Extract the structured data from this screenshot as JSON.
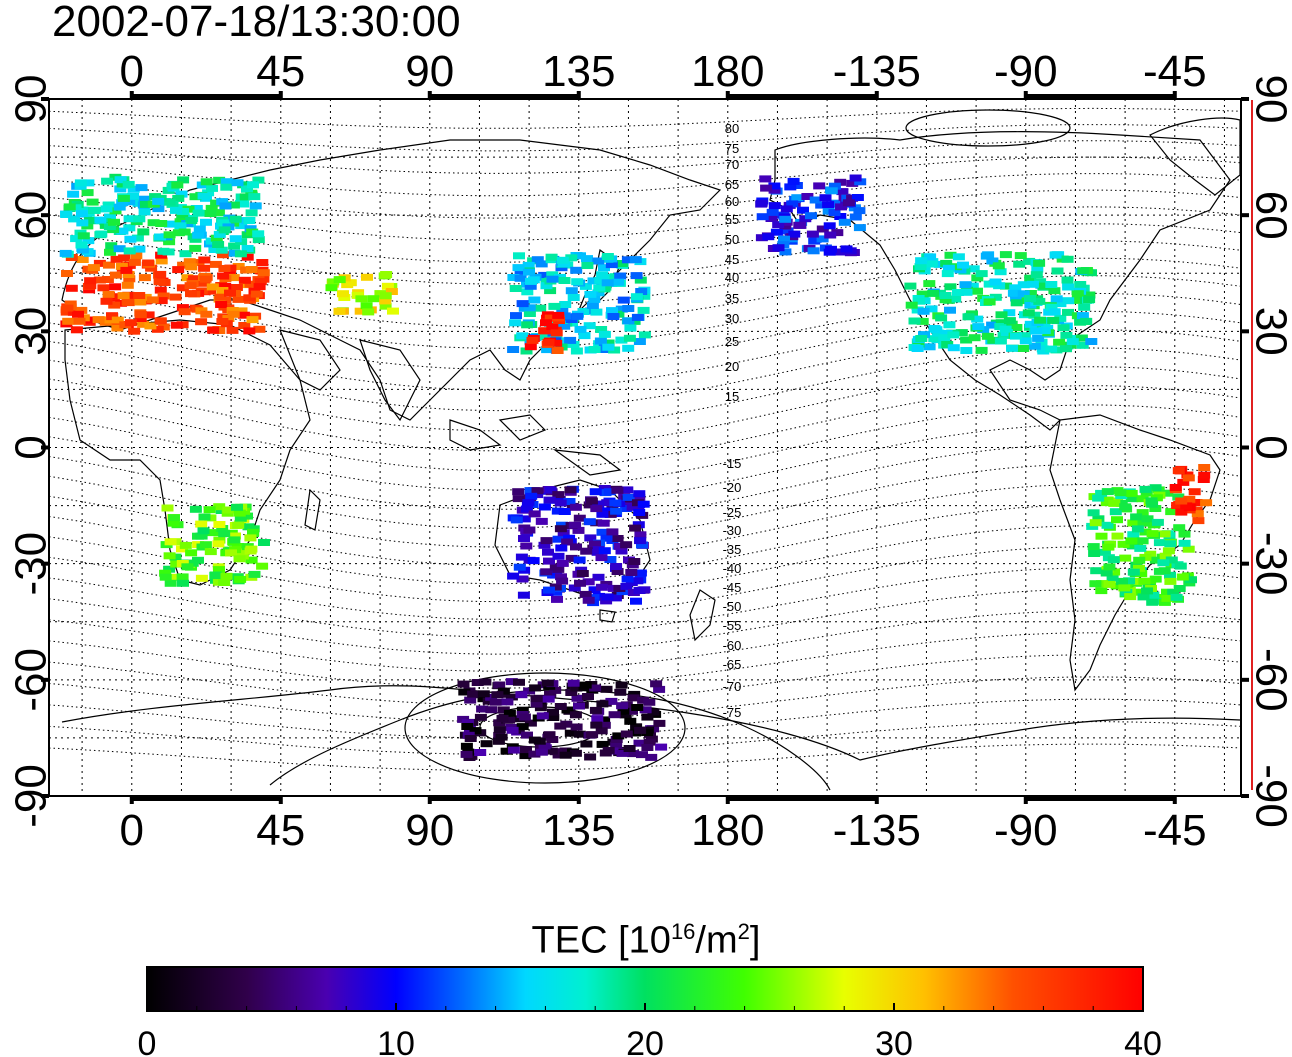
{
  "title": "2002-07-18/13:30:00",
  "colorbar": {
    "label_prefix": "TEC  [10",
    "label_exp1": "16",
    "label_mid": "/m",
    "label_exp2": "2",
    "label_suffix": "]",
    "ticks": [
      0,
      10,
      20,
      30,
      40
    ],
    "range": [
      0,
      40
    ],
    "colormap": [
      "#000000",
      "#40006e",
      "#5000c8",
      "#0000ff",
      "#0090ff",
      "#00ffff",
      "#00e060",
      "#00ff00",
      "#ffff00",
      "#ff8000",
      "#ff0000"
    ]
  },
  "chart_data": {
    "type": "heatmap",
    "title": "2002-07-18/13:30:00",
    "x_top_ticks": [
      "0",
      "45",
      "90",
      "135",
      "180",
      "-135",
      "-90",
      "-45"
    ],
    "x_bottom_ticks": [
      "0",
      "45",
      "90",
      "135",
      "180",
      "-135",
      "-90",
      "-45"
    ],
    "y_left_ticks": [
      "90",
      "60",
      "30",
      "0",
      "-30",
      "-60",
      "-90"
    ],
    "y_right_ticks": [
      "90",
      "60",
      "30",
      "0",
      "-30",
      "-60",
      "-90"
    ],
    "x_range": [
      -25,
      335
    ],
    "y_range": [
      -90,
      90
    ],
    "grid": true,
    "contour_labels_north": [
      "80",
      "75",
      "70",
      "65",
      "60",
      "55",
      "50",
      "45",
      "40",
      "35",
      "30",
      "25",
      "20",
      "15"
    ],
    "contour_labels_south": [
      "-15",
      "-20",
      "-25",
      "-30",
      "-35",
      "-40",
      "-45",
      "-50",
      "-55",
      "-60",
      "-65",
      "-70",
      "-75"
    ],
    "regions": [
      {
        "lon": [
          -20,
          40
        ],
        "lat": [
          30,
          50
        ],
        "tec": 36
      },
      {
        "lon": [
          -20,
          40
        ],
        "lat": [
          50,
          70
        ],
        "tec": 18
      },
      {
        "lon": [
          60,
          80
        ],
        "lat": [
          35,
          45
        ],
        "tec": 28
      },
      {
        "lon": [
          115,
          155
        ],
        "lat": [
          25,
          50
        ],
        "tec": 16
      },
      {
        "lon": [
          120,
          130
        ],
        "lat": [
          25,
          35
        ],
        "tec": 38
      },
      {
        "lon": [
          10,
          40
        ],
        "lat": [
          -35,
          -15
        ],
        "tec": 24
      },
      {
        "lon": [
          115,
          155
        ],
        "lat": [
          -40,
          -10
        ],
        "tec": 8
      },
      {
        "lon": [
          -70,
          -40
        ],
        "lat": [
          -40,
          -10
        ],
        "tec": 22
      },
      {
        "lon": [
          -45,
          -35
        ],
        "lat": [
          -20,
          -5
        ],
        "tec": 37
      },
      {
        "lon": [
          -125,
          -70
        ],
        "lat": [
          25,
          50
        ],
        "tec": 18
      },
      {
        "lon": [
          -170,
          -140
        ],
        "lat": [
          50,
          70
        ],
        "tec": 10
      },
      {
        "lon": [
          100,
          160
        ],
        "lat": [
          -80,
          -60
        ],
        "tec": 3
      }
    ]
  }
}
